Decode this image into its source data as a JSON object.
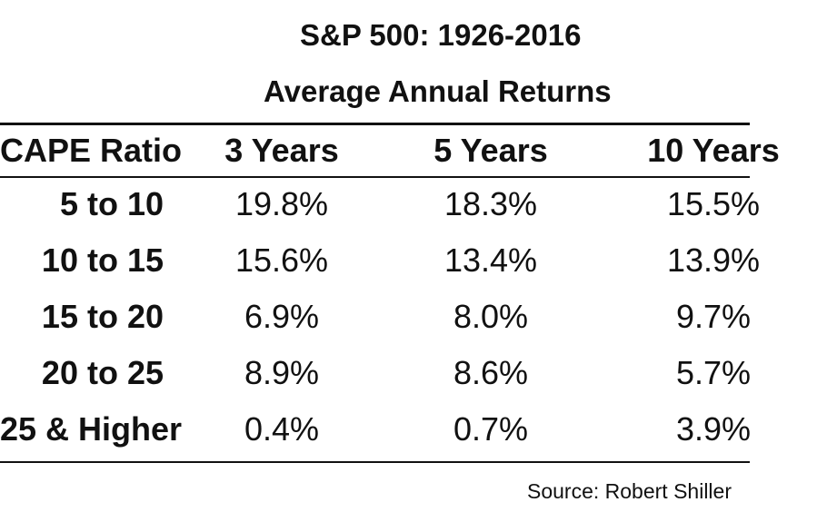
{
  "chart_data": {
    "type": "table",
    "title": "S&P 500: 1926-2016",
    "subtitle": "Average Annual Returns",
    "columns": [
      "CAPE Ratio",
      "3 Years",
      "5 Years",
      "10 Years"
    ],
    "rows": [
      {
        "label": "5 to 10",
        "values": [
          "19.8%",
          "18.3%",
          "15.5%"
        ]
      },
      {
        "label": "10 to 15",
        "values": [
          "15.6%",
          "13.4%",
          "13.9%"
        ]
      },
      {
        "label": "15 to 20",
        "values": [
          "6.9%",
          "8.0%",
          "9.7%"
        ]
      },
      {
        "label": "20 to 25",
        "values": [
          "8.9%",
          "8.6%",
          "5.7%"
        ]
      },
      {
        "label": "25 & Higher",
        "values": [
          "0.4%",
          "0.7%",
          "3.9%"
        ]
      }
    ],
    "source": "Source: Robert Shiller"
  }
}
